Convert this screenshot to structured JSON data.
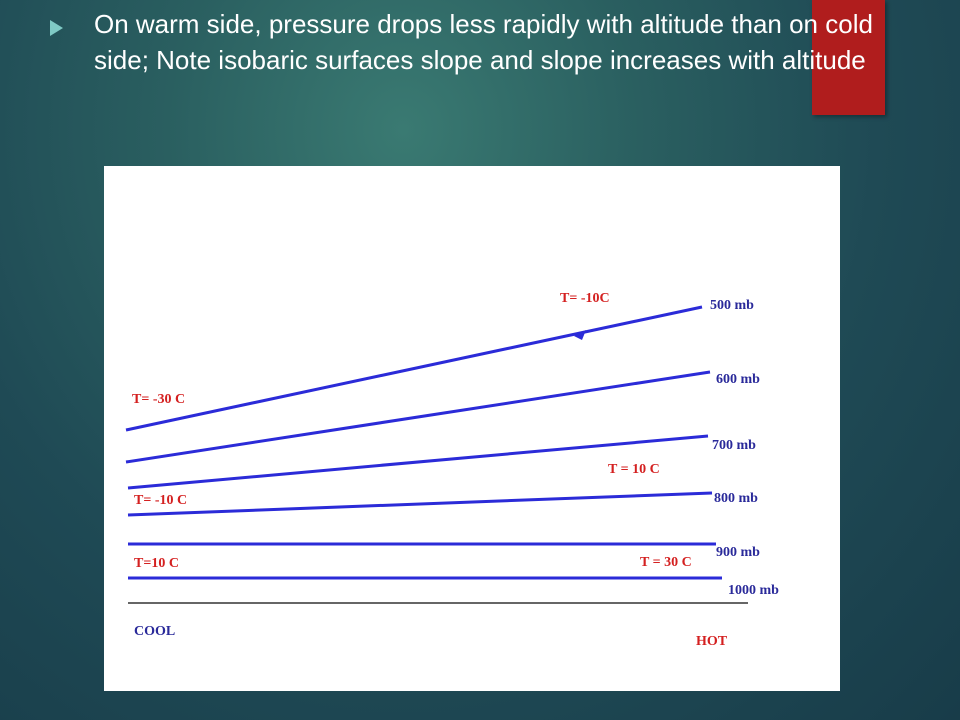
{
  "slide": {
    "bullet_text": "On warm side, pressure drops less rapidly with altitude than on cold side; Note isobaric surfaces slope and slope increases with altitude"
  },
  "diagram": {
    "isobars": [
      {
        "label": "500 mb"
      },
      {
        "label": "600 mb"
      },
      {
        "label": "700 mb"
      },
      {
        "label": "800 mb"
      },
      {
        "label": "900 mb"
      },
      {
        "label": "1000 mb"
      }
    ],
    "temperatures": {
      "cold_upper": "T= -30 C",
      "warm_upper": "T= -10C",
      "cold_middle": "T= -10 C",
      "warm_middle": "T = 10 C",
      "cold_lower": "T=10 C",
      "warm_lower": "T = 30 C"
    },
    "sides": {
      "cold": "COOL",
      "warm": "HOT"
    },
    "colors": {
      "isobar_line": "#2b2bd8",
      "temperature_text": "#d42020",
      "ground_line": "#333333",
      "accent_bar": "#b01d1d"
    }
  }
}
